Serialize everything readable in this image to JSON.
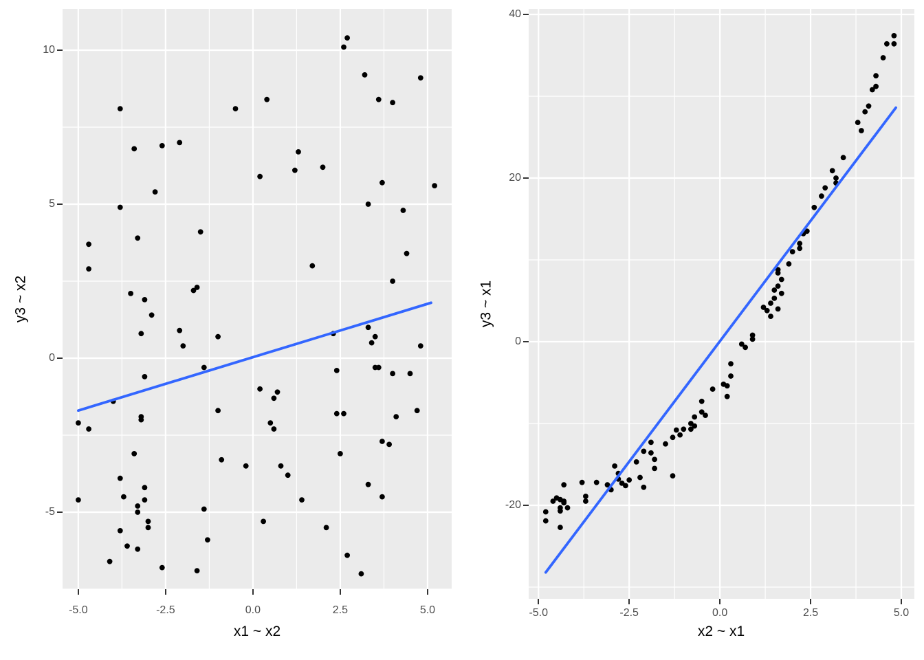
{
  "figure": {
    "background": "#ffffff"
  },
  "style": {
    "panel_background": "#ebebeb",
    "grid_color": "#ffffff",
    "point_color": "#000000",
    "smooth_line_color": "#3366ff",
    "tick_label_color": "#4d4d4d",
    "axis_title_color": "#000000",
    "tick_mark_color": "#333333"
  },
  "chart_data": [
    {
      "id": "left-scatter",
      "type": "scatter",
      "title": "",
      "xlabel": "x1 ~ x2",
      "ylabel": "y3 ~ x2",
      "legend": "none",
      "grid": true,
      "xlim": [
        -5.45,
        5.69
      ],
      "ylim": [
        -7.5,
        11.34
      ],
      "x_major_ticks": [
        -5.0,
        -2.5,
        0.0,
        2.5,
        5.0
      ],
      "x_tick_labels": [
        "-5.0",
        "-2.5",
        "0.0",
        "2.5",
        "5.0"
      ],
      "x_minor_ticks": [
        -3.75,
        -1.25,
        1.25,
        3.75
      ],
      "y_major_ticks": [
        -5,
        0,
        5,
        10
      ],
      "y_tick_labels": [
        "-5",
        "0",
        "5",
        "10"
      ],
      "y_minor_ticks": [
        -7.5,
        -2.5,
        2.5,
        7.5
      ],
      "smooth_line": {
        "x": [
          -5.0,
          5.1
        ],
        "y": [
          -1.7,
          1.8
        ]
      },
      "points": [
        [
          -3.8,
          8.1
        ],
        [
          -0.5,
          8.1
        ],
        [
          -3.4,
          6.8
        ],
        [
          -2.6,
          6.9
        ],
        [
          -2.1,
          7.0
        ],
        [
          0.2,
          5.9
        ],
        [
          -2.8,
          5.4
        ],
        [
          -3.8,
          4.9
        ],
        [
          -1.5,
          4.1
        ],
        [
          -3.3,
          3.9
        ],
        [
          -4.7,
          3.7
        ],
        [
          -4.7,
          2.9
        ],
        [
          -3.5,
          2.1
        ],
        [
          -3.1,
          1.9
        ],
        [
          -1.7,
          2.2
        ],
        [
          -1.6,
          2.3
        ],
        [
          2.7,
          10.4
        ],
        [
          2.6,
          10.1
        ],
        [
          3.2,
          9.2
        ],
        [
          4.8,
          9.1
        ],
        [
          0.4,
          8.4
        ],
        [
          3.6,
          8.4
        ],
        [
          4.0,
          8.3
        ],
        [
          1.3,
          6.7
        ],
        [
          1.2,
          6.1
        ],
        [
          2.0,
          6.2
        ],
        [
          3.7,
          5.7
        ],
        [
          5.2,
          5.6
        ],
        [
          3.3,
          5.0
        ],
        [
          4.3,
          4.8
        ],
        [
          4.4,
          3.4
        ],
        [
          1.7,
          3.0
        ],
        [
          4.0,
          2.5
        ],
        [
          -2.9,
          1.4
        ],
        [
          -3.2,
          0.8
        ],
        [
          -2.1,
          0.9
        ],
        [
          -2.0,
          0.4
        ],
        [
          -1.0,
          0.7
        ],
        [
          -1.4,
          -0.3
        ],
        [
          -3.1,
          -0.6
        ],
        [
          -4.0,
          -1.4
        ],
        [
          -3.2,
          -1.9
        ],
        [
          -3.2,
          -2.0
        ],
        [
          -1.0,
          -1.7
        ],
        [
          -5.0,
          -2.1
        ],
        [
          -4.7,
          -2.3
        ],
        [
          0.2,
          -1.0
        ],
        [
          -3.4,
          -3.1
        ],
        [
          -0.9,
          -3.3
        ],
        [
          -0.2,
          -3.5
        ],
        [
          -3.8,
          -3.9
        ],
        [
          -3.1,
          -4.2
        ],
        [
          -3.7,
          -4.5
        ],
        [
          -5.0,
          -4.6
        ],
        [
          -3.1,
          -4.6
        ],
        [
          -3.3,
          -4.8
        ],
        [
          -3.3,
          -5.0
        ],
        [
          -1.4,
          -4.9
        ],
        [
          -3.0,
          -5.3
        ],
        [
          -3.0,
          -5.5
        ],
        [
          -3.8,
          -5.6
        ],
        [
          -1.3,
          -5.9
        ],
        [
          -3.6,
          -6.1
        ],
        [
          -3.3,
          -6.2
        ],
        [
          -4.1,
          -6.6
        ],
        [
          -2.6,
          -6.8
        ],
        [
          -1.6,
          -6.9
        ],
        [
          3.3,
          1.0
        ],
        [
          3.5,
          0.7
        ],
        [
          2.3,
          0.8
        ],
        [
          3.4,
          0.5
        ],
        [
          4.8,
          0.4
        ],
        [
          2.4,
          -0.4
        ],
        [
          3.5,
          -0.3
        ],
        [
          3.6,
          -0.3
        ],
        [
          4.0,
          -0.5
        ],
        [
          4.5,
          -0.5
        ],
        [
          0.7,
          -1.1
        ],
        [
          0.6,
          -1.3
        ],
        [
          2.4,
          -1.8
        ],
        [
          2.6,
          -1.8
        ],
        [
          4.1,
          -1.9
        ],
        [
          4.7,
          -1.7
        ],
        [
          0.5,
          -2.1
        ],
        [
          0.6,
          -2.3
        ],
        [
          3.7,
          -2.7
        ],
        [
          3.9,
          -2.8
        ],
        [
          2.5,
          -3.1
        ],
        [
          0.8,
          -3.5
        ],
        [
          1.0,
          -3.8
        ],
        [
          3.3,
          -4.1
        ],
        [
          3.7,
          -4.5
        ],
        [
          1.4,
          -4.6
        ],
        [
          0.3,
          -5.3
        ],
        [
          2.1,
          -5.5
        ],
        [
          2.7,
          -6.4
        ],
        [
          3.1,
          -7.0
        ]
      ]
    },
    {
      "id": "right-scatter",
      "type": "scatter",
      "title": "",
      "xlabel": "x2 ~ x1",
      "ylabel": "y3 ~ x1",
      "legend": "none",
      "grid": true,
      "xlim": [
        -5.27,
        5.36
      ],
      "ylim": [
        -31.43,
        40.67
      ],
      "x_major_ticks": [
        -5.0,
        -2.5,
        0.0,
        2.5,
        5.0
      ],
      "x_tick_labels": [
        "-5.0",
        "-2.5",
        "0.0",
        "2.5",
        "5.0"
      ],
      "x_minor_ticks": [
        -3.75,
        -1.25,
        1.25,
        3.75
      ],
      "y_major_ticks": [
        -20,
        0,
        20,
        40
      ],
      "y_tick_labels": [
        "-20",
        "0",
        "20",
        "40"
      ],
      "y_minor_ticks": [
        -30,
        -10,
        10,
        30
      ],
      "smooth_line": {
        "x": [
          -4.8,
          4.85
        ],
        "y": [
          -28.2,
          28.6
        ]
      },
      "points": [
        [
          -4.8,
          -20.8
        ],
        [
          -4.8,
          -21.9
        ],
        [
          -4.6,
          -19.5
        ],
        [
          -4.5,
          -19.1
        ],
        [
          -4.4,
          -19.3
        ],
        [
          -4.3,
          -19.7
        ],
        [
          -4.4,
          -20.3
        ],
        [
          -4.4,
          -20.7
        ],
        [
          -4.3,
          -19.5
        ],
        [
          -4.2,
          -20.3
        ],
        [
          -4.4,
          -22.7
        ],
        [
          -4.3,
          -17.5
        ],
        [
          -3.8,
          -17.2
        ],
        [
          -3.7,
          -18.9
        ],
        [
          -3.7,
          -19.5
        ],
        [
          -3.4,
          -17.2
        ],
        [
          -3.1,
          -17.5
        ],
        [
          -3.0,
          -18.1
        ],
        [
          -2.9,
          -15.2
        ],
        [
          -2.8,
          -16.1
        ],
        [
          -2.8,
          -16.8
        ],
        [
          -2.7,
          -17.3
        ],
        [
          -2.6,
          -17.6
        ],
        [
          -2.5,
          -16.9
        ],
        [
          -2.2,
          -16.6
        ],
        [
          -2.1,
          -17.8
        ],
        [
          -2.3,
          -14.7
        ],
        [
          -2.1,
          -13.4
        ],
        [
          -1.9,
          -13.6
        ],
        [
          -1.8,
          -14.4
        ],
        [
          -1.8,
          -15.5
        ],
        [
          -1.9,
          -12.3
        ],
        [
          -1.5,
          -12.5
        ],
        [
          -1.3,
          -16.4
        ],
        [
          -1.3,
          -11.7
        ],
        [
          -1.2,
          -10.8
        ],
        [
          -1.1,
          -11.4
        ],
        [
          -1.0,
          -10.7
        ],
        [
          -0.8,
          -10.7
        ],
        [
          -0.8,
          -10.0
        ],
        [
          -0.7,
          -10.3
        ],
        [
          -0.7,
          -9.2
        ],
        [
          -0.5,
          -8.6
        ],
        [
          -0.4,
          -9.0
        ],
        [
          -0.5,
          -7.3
        ],
        [
          -0.2,
          -5.8
        ],
        [
          0.1,
          -5.2
        ],
        [
          0.2,
          -5.4
        ],
        [
          0.2,
          -6.7
        ],
        [
          0.3,
          -4.2
        ],
        [
          0.3,
          -2.7
        ],
        [
          0.6,
          -0.3
        ],
        [
          0.7,
          -0.7
        ],
        [
          0.9,
          0.8
        ],
        [
          0.9,
          0.3
        ],
        [
          1.2,
          4.2
        ],
        [
          1.3,
          3.8
        ],
        [
          1.4,
          3.1
        ],
        [
          1.4,
          4.7
        ],
        [
          1.5,
          5.3
        ],
        [
          1.6,
          4.0
        ],
        [
          1.5,
          6.3
        ],
        [
          1.6,
          6.8
        ],
        [
          1.7,
          5.9
        ],
        [
          1.6,
          8.4
        ],
        [
          1.6,
          8.8
        ],
        [
          1.7,
          7.6
        ],
        [
          1.9,
          9.5
        ],
        [
          2.0,
          11.0
        ],
        [
          2.2,
          11.4
        ],
        [
          2.2,
          12.0
        ],
        [
          2.3,
          13.2
        ],
        [
          2.4,
          13.5
        ],
        [
          2.6,
          16.4
        ],
        [
          2.8,
          17.8
        ],
        [
          2.9,
          18.8
        ],
        [
          3.1,
          20.9
        ],
        [
          3.2,
          20.0
        ],
        [
          3.2,
          19.4
        ],
        [
          3.4,
          22.5
        ],
        [
          3.8,
          26.8
        ],
        [
          3.9,
          25.8
        ],
        [
          4.0,
          28.1
        ],
        [
          4.1,
          28.8
        ],
        [
          4.2,
          30.8
        ],
        [
          4.3,
          31.2
        ],
        [
          4.3,
          32.5
        ],
        [
          4.5,
          34.7
        ],
        [
          4.6,
          36.4
        ],
        [
          4.8,
          36.4
        ],
        [
          4.8,
          37.4
        ]
      ]
    }
  ]
}
